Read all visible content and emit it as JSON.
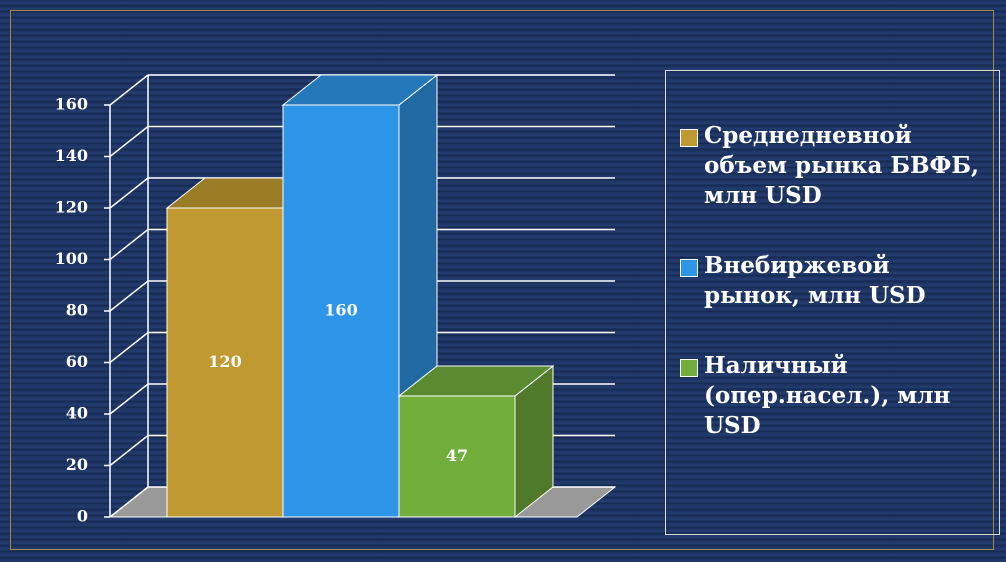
{
  "chart_data": {
    "type": "bar3d",
    "categories": [
      null
    ],
    "series": [
      {
        "name": "Среднедневной объем рынка БВФБ, млн USD",
        "color": "#c09a30",
        "values": [
          120
        ]
      },
      {
        "name": "Внебиржевой рынок, млн USD",
        "color": "#2e96e8",
        "values": [
          160
        ]
      },
      {
        "name": "Наличный (опер.насел.), млн USD",
        "color": "#72ae3c",
        "values": [
          47
        ]
      }
    ],
    "ylim": [
      0,
      160
    ],
    "yticks": [
      0,
      20,
      40,
      60,
      80,
      100,
      120,
      140,
      160
    ],
    "grid": true,
    "legend": "right"
  }
}
